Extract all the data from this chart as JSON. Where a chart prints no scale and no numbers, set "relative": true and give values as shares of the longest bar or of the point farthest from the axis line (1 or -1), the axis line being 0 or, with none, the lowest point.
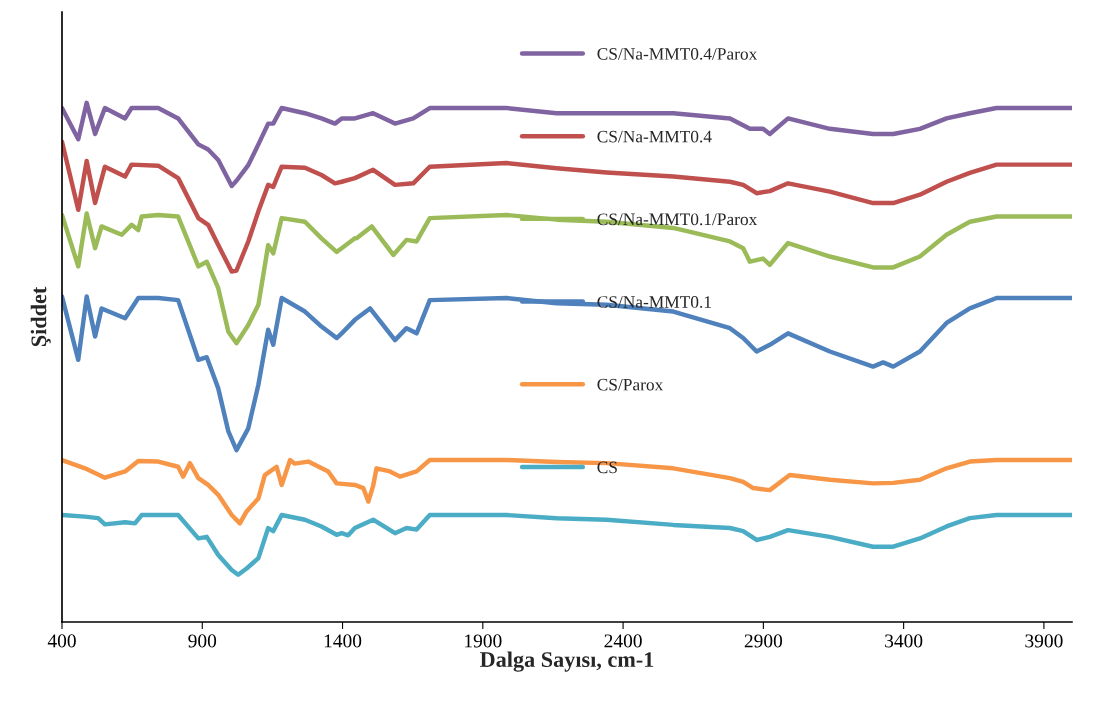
{
  "chart_data": {
    "type": "line",
    "relative": true,
    "xlabel": "Dalga Sayısı, cm-1",
    "ylabel": "Şiddet",
    "xlim": [
      400,
      4000
    ],
    "xticks": [
      400,
      900,
      1400,
      1900,
      2400,
      2900,
      3400,
      3900
    ],
    "grid": false,
    "legend": "center",
    "marker": "none",
    "line_style": "solid",
    "series": [
      {
        "name": "CS/Na-MMT0.4/Parox",
        "color": "#8064a2",
        "x": [
          400,
          458,
          488,
          518,
          553,
          625,
          648,
          743,
          814,
          886,
          921,
          957,
          1005,
          1022,
          1064,
          1100,
          1135,
          1153,
          1183,
          1266,
          1325,
          1373,
          1397,
          1444,
          1509,
          1587,
          1652,
          1711,
          1985,
          2163,
          2341,
          2579,
          2781,
          2852,
          2899,
          2923,
          2988,
          3137,
          3291,
          3363,
          3458,
          3553,
          3636,
          3731,
          4000
        ],
        "values": [
          0.99,
          0.93,
          1.0,
          0.94,
          0.99,
          0.97,
          0.99,
          0.99,
          0.97,
          0.92,
          0.91,
          0.89,
          0.84,
          0.85,
          0.88,
          0.92,
          0.96,
          0.96,
          0.99,
          0.98,
          0.97,
          0.96,
          0.97,
          0.97,
          0.98,
          0.96,
          0.97,
          0.99,
          0.99,
          0.98,
          0.98,
          0.98,
          0.97,
          0.95,
          0.95,
          0.94,
          0.97,
          0.95,
          0.94,
          0.94,
          0.95,
          0.97,
          0.98,
          0.99,
          0.99
        ]
      },
      {
        "name": "CS/Na-MMT0.4",
        "color": "#c0504d",
        "x": [
          400,
          458,
          488,
          518,
          553,
          625,
          648,
          743,
          814,
          886,
          921,
          957,
          1005,
          1022,
          1064,
          1100,
          1135,
          1153,
          1183,
          1266,
          1325,
          1373,
          1397,
          1444,
          1509,
          1587,
          1652,
          1711,
          1985,
          2163,
          2341,
          2579,
          2781,
          2828,
          2876,
          2923,
          2988,
          3137,
          3291,
          3363,
          3458,
          3553,
          3636,
          3731,
          4000
        ],
        "values": [
          0.925,
          0.794,
          0.888,
          0.807,
          0.877,
          0.858,
          0.881,
          0.879,
          0.855,
          0.778,
          0.765,
          0.726,
          0.675,
          0.677,
          0.733,
          0.791,
          0.842,
          0.838,
          0.877,
          0.875,
          0.861,
          0.845,
          0.848,
          0.855,
          0.871,
          0.842,
          0.845,
          0.877,
          0.884,
          0.874,
          0.866,
          0.858,
          0.848,
          0.842,
          0.826,
          0.83,
          0.845,
          0.829,
          0.807,
          0.807,
          0.823,
          0.848,
          0.865,
          0.881,
          0.881
        ]
      },
      {
        "name": "CS/Na-MMT0.1/Parox",
        "color": "#9bbb59",
        "x": [
          400,
          458,
          488,
          518,
          541,
          613,
          648,
          672,
          684,
          743,
          814,
          886,
          916,
          957,
          993,
          1022,
          1064,
          1100,
          1135,
          1153,
          1183,
          1266,
          1325,
          1379,
          1397,
          1444,
          1450,
          1504,
          1581,
          1628,
          1664,
          1711,
          1985,
          2163,
          2341,
          2579,
          2781,
          2828,
          2852,
          2899,
          2923,
          2988,
          3137,
          3291,
          3363,
          3458,
          3553,
          3636,
          3731,
          4000
        ],
        "values": [
          0.784,
          0.685,
          0.787,
          0.72,
          0.762,
          0.746,
          0.765,
          0.755,
          0.781,
          0.784,
          0.781,
          0.685,
          0.694,
          0.643,
          0.559,
          0.537,
          0.572,
          0.611,
          0.726,
          0.71,
          0.778,
          0.771,
          0.739,
          0.713,
          0.72,
          0.739,
          0.739,
          0.762,
          0.707,
          0.736,
          0.733,
          0.778,
          0.784,
          0.775,
          0.771,
          0.759,
          0.733,
          0.72,
          0.694,
          0.7,
          0.688,
          0.73,
          0.704,
          0.683,
          0.683,
          0.704,
          0.746,
          0.771,
          0.781,
          0.781
        ]
      },
      {
        "name": "CS/Na-MMT0.1",
        "color": "#4f81bd",
        "x": [
          400,
          458,
          488,
          518,
          541,
          625,
          672,
          743,
          814,
          886,
          916,
          957,
          993,
          1022,
          1064,
          1100,
          1135,
          1153,
          1183,
          1266,
          1325,
          1379,
          1397,
          1444,
          1498,
          1587,
          1628,
          1664,
          1711,
          1985,
          2163,
          2341,
          2579,
          2781,
          2828,
          2876,
          2923,
          2988,
          3137,
          3291,
          3327,
          3363,
          3458,
          3553,
          3636,
          3731,
          4000
        ],
        "values": [
          0.627,
          0.505,
          0.627,
          0.55,
          0.604,
          0.585,
          0.624,
          0.624,
          0.62,
          0.505,
          0.51,
          0.45,
          0.367,
          0.331,
          0.373,
          0.457,
          0.563,
          0.534,
          0.624,
          0.598,
          0.569,
          0.547,
          0.556,
          0.582,
          0.604,
          0.543,
          0.566,
          0.556,
          0.62,
          0.624,
          0.614,
          0.611,
          0.598,
          0.566,
          0.547,
          0.521,
          0.534,
          0.556,
          0.521,
          0.492,
          0.5,
          0.492,
          0.521,
          0.576,
          0.604,
          0.624,
          0.624
        ]
      },
      {
        "name": "CS/Parox",
        "color": "#f79646",
        "x": [
          400,
          482,
          553,
          625,
          672,
          743,
          814,
          832,
          856,
          886,
          921,
          957,
          1005,
          1034,
          1058,
          1100,
          1123,
          1165,
          1183,
          1213,
          1230,
          1278,
          1349,
          1379,
          1444,
          1474,
          1492,
          1509,
          1521,
          1569,
          1605,
          1664,
          1711,
          1985,
          2163,
          2341,
          2579,
          2781,
          2828,
          2864,
          2923,
          2994,
          3137,
          3291,
          3363,
          3458,
          3553,
          3636,
          3731,
          4000
        ],
        "values": [
          0.312,
          0.296,
          0.278,
          0.29,
          0.31,
          0.309,
          0.299,
          0.28,
          0.306,
          0.277,
          0.264,
          0.245,
          0.206,
          0.19,
          0.213,
          0.238,
          0.283,
          0.299,
          0.264,
          0.312,
          0.305,
          0.309,
          0.29,
          0.267,
          0.264,
          0.258,
          0.232,
          0.262,
          0.296,
          0.29,
          0.28,
          0.29,
          0.312,
          0.312,
          0.308,
          0.306,
          0.296,
          0.277,
          0.27,
          0.258,
          0.254,
          0.283,
          0.274,
          0.267,
          0.268,
          0.274,
          0.296,
          0.309,
          0.312,
          0.312
        ]
      },
      {
        "name": "CS",
        "color": "#4bacc6",
        "x": [
          400,
          482,
          529,
          553,
          625,
          660,
          684,
          814,
          886,
          916,
          957,
          1005,
          1028,
          1058,
          1100,
          1135,
          1153,
          1183,
          1266,
          1325,
          1379,
          1397,
          1420,
          1444,
          1509,
          1587,
          1628,
          1664,
          1711,
          1985,
          2163,
          2341,
          2579,
          2781,
          2828,
          2876,
          2923,
          2988,
          3137,
          3291,
          3363,
          3458,
          3553,
          3636,
          3731,
          4000
        ],
        "values": [
          0.206,
          0.203,
          0.2,
          0.188,
          0.192,
          0.19,
          0.206,
          0.206,
          0.161,
          0.164,
          0.129,
          0.1,
          0.091,
          0.103,
          0.123,
          0.181,
          0.175,
          0.206,
          0.197,
          0.184,
          0.168,
          0.171,
          0.167,
          0.181,
          0.197,
          0.171,
          0.181,
          0.178,
          0.206,
          0.206,
          0.2,
          0.197,
          0.187,
          0.181,
          0.175,
          0.158,
          0.164,
          0.177,
          0.164,
          0.145,
          0.145,
          0.161,
          0.184,
          0.2,
          0.206,
          0.206
        ]
      }
    ]
  }
}
